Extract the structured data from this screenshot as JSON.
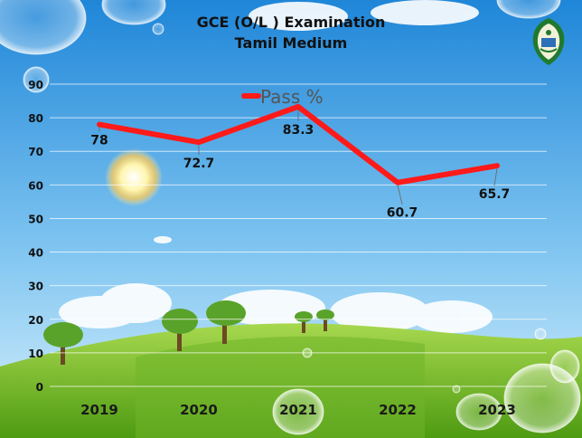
{
  "slide": {
    "title_line1": "GCE (O/L ) Examination",
    "title_line2": "Tamil Medium"
  },
  "colors": {
    "sky_top": "#1f86d8",
    "sky_bottom": "#bfe4fa",
    "grass_dark": "#4f9a10",
    "grass_light": "#9fd14a",
    "line": "#ff1a1a"
  },
  "chart_data": {
    "type": "line",
    "title": "",
    "categories": [
      "2019",
      "2020",
      "2021",
      "2022",
      "2023"
    ],
    "series": [
      {
        "name": "Pass %",
        "values": [
          78,
          72.7,
          83.3,
          60.7,
          65.7
        ],
        "labels": [
          "78",
          "72.7",
          "83.3",
          "60.7",
          "65.7"
        ]
      }
    ],
    "yticks": [
      "0",
      "10",
      "20",
      "30",
      "40",
      "50",
      "60",
      "70",
      "80",
      "90"
    ],
    "ylim": [
      0,
      90
    ],
    "xlabel": "",
    "ylabel": "",
    "grid": true,
    "legend": "top-center"
  }
}
